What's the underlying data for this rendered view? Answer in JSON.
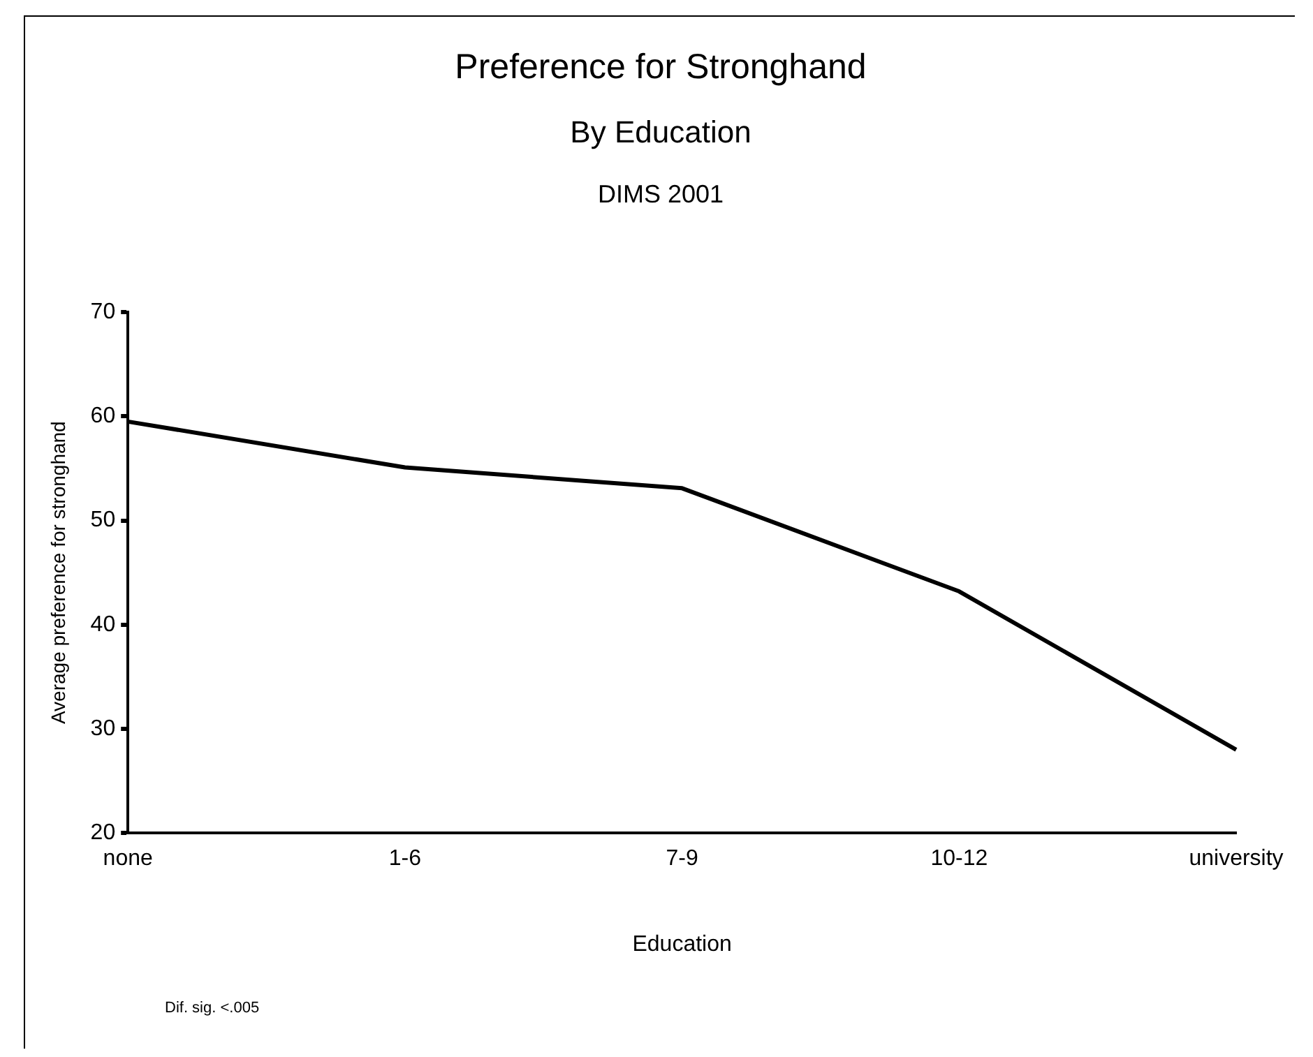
{
  "chart_data": {
    "type": "line",
    "title": "Preference for Stronghand",
    "subtitle": "By Education",
    "annotations": [
      "DIMS 2001",
      "Dif. sig. <.005"
    ],
    "xlabel": "Education",
    "ylabel": "Average preference for stronghand",
    "categories": [
      "none",
      "1-6",
      "7-9",
      "10-12",
      "university"
    ],
    "series": [
      {
        "color": "#000000",
        "values": [
          59.5,
          55.1,
          53.1,
          43.2,
          28.0
        ]
      }
    ],
    "ylim": [
      20,
      70
    ],
    "yticks": [
      20,
      30,
      40,
      50,
      60,
      70
    ],
    "grid": false,
    "legend": false,
    "marker": "none",
    "line_style": "solid"
  }
}
